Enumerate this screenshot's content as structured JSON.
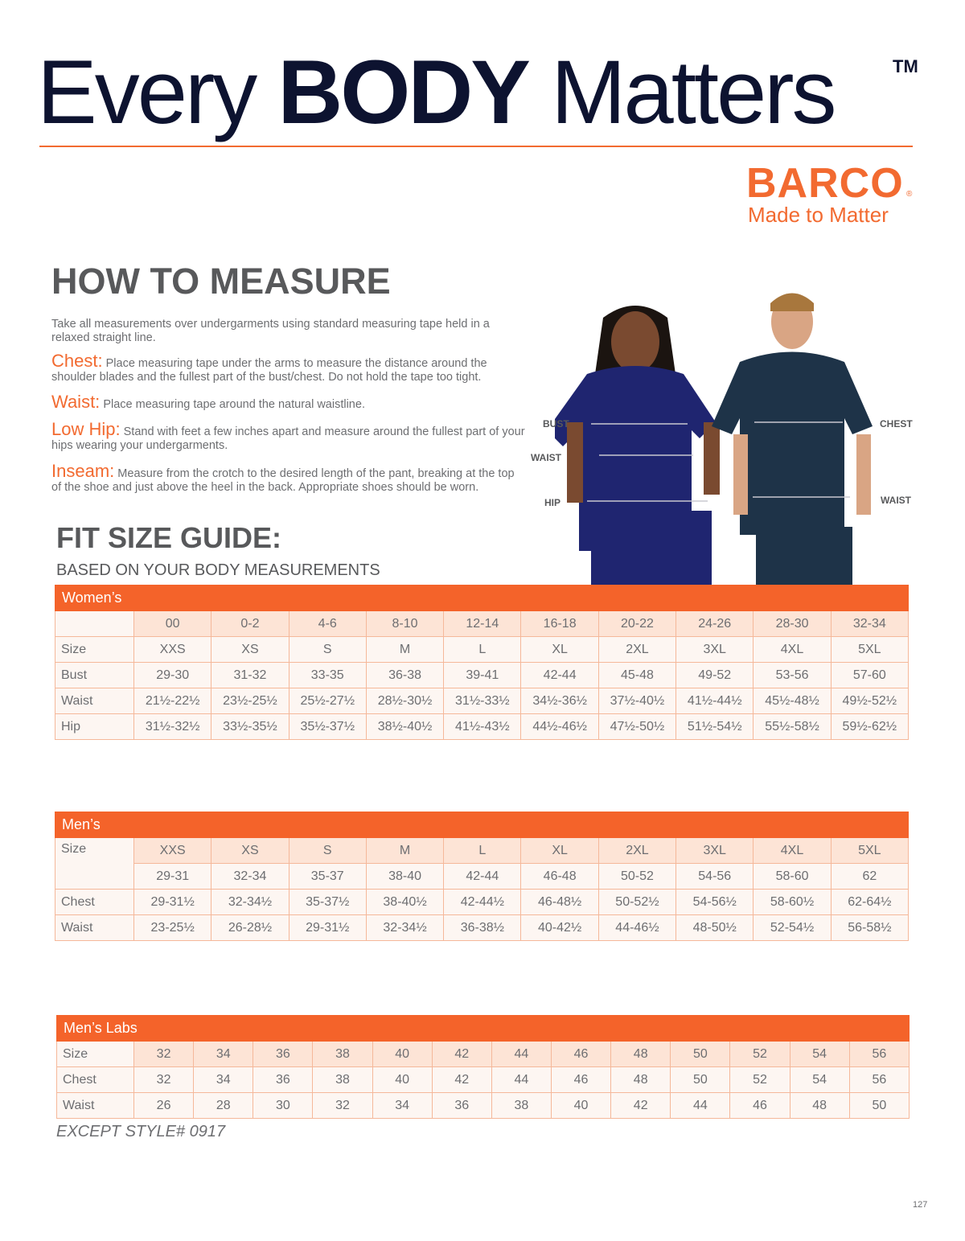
{
  "header": {
    "headline_pre": "Every ",
    "headline_bold": "BODY",
    "headline_post": " Matters",
    "trademark": "TM"
  },
  "brand": {
    "name": "BARCO",
    "registered": "®",
    "tagline": "Made to Matter",
    "color": "#f26a30"
  },
  "how_to_measure": {
    "title": "HOW TO MEASURE",
    "intro": "Take all measurements over undergarments using standard measuring tape held in a relaxed straight line.",
    "items": [
      {
        "term": "Chest:",
        "text": "Place measuring tape under the arms to measure the distance around the shoulder blades and the fullest part of the bust/chest. Do not hold the tape too tight."
      },
      {
        "term": "Waist:",
        "text": "Place measuring tape around the natural waistline."
      },
      {
        "term": "Low Hip:",
        "text": "Stand with feet a few inches apart and measure around the fullest part of your hips wearing your undergarments."
      },
      {
        "term": "Inseam:",
        "text": "Measure from the crotch to the desired length of the pant, breaking at the top of the shoe and just above the heel in the back. Appropriate shoes should be worn."
      }
    ]
  },
  "figure_labels": {
    "bust": "BUST",
    "waist_left": "WAISt",
    "hip": "HIP",
    "chest": "CHEST",
    "waist_right": "WAIST"
  },
  "fit_guide": {
    "title": "FIT SIZE GUIDE:",
    "subtitle": "BASED ON YOUR BODY MEASUREMENTS"
  },
  "womens": {
    "caption": "Women’s",
    "numeric": [
      "00",
      "0-2",
      "4-6",
      "8-10",
      "12-14",
      "16-18",
      "20-22",
      "24-26",
      "28-30",
      "32-34"
    ],
    "rows": [
      {
        "label": "Size",
        "values": [
          "XXS",
          "XS",
          "S",
          "M",
          "L",
          "XL",
          "2XL",
          "3XL",
          "4XL",
          "5XL"
        ]
      },
      {
        "label": "Bust",
        "values": [
          "29-30",
          "31-32",
          "33-35",
          "36-38",
          "39-41",
          "42-44",
          "45-48",
          "49-52",
          "53-56",
          "57-60"
        ]
      },
      {
        "label": "Waist",
        "values": [
          "21½-22½",
          "23½-25½",
          "25½-27½",
          "28½-30½",
          "31½-33½",
          "34½-36½",
          "37½-40½",
          "41½-44½",
          "45½-48½",
          "49½-52½"
        ]
      },
      {
        "label": "Hip",
        "values": [
          "31½-32½",
          "33½-35½",
          "35½-37½",
          "38½-40½",
          "41½-43½",
          "44½-46½",
          "47½-50½",
          "51½-54½",
          "55½-58½",
          "59½-62½"
        ]
      }
    ]
  },
  "mens": {
    "caption": "Men’s",
    "size_label": "Size",
    "sizes": [
      "XXS",
      "XS",
      "S",
      "M",
      "L",
      "XL",
      "2XL",
      "3XL",
      "4XL",
      "5XL"
    ],
    "numeric": [
      "29-31",
      "32-34",
      "35-37",
      "38-40",
      "42-44",
      "46-48",
      "50-52",
      "54-56",
      "58-60",
      "62"
    ],
    "rows": [
      {
        "label": "Chest",
        "values": [
          "29-31½",
          "32-34½",
          "35-37½",
          "38-40½",
          "42-44½",
          "46-48½",
          "50-52½",
          "54-56½",
          "58-60½",
          "62-64½"
        ]
      },
      {
        "label": "Waist",
        "values": [
          "23-25½",
          "26-28½",
          "29-31½",
          "32-34½",
          "36-38½",
          "40-42½",
          "44-46½",
          "48-50½",
          "52-54½",
          "56-58½"
        ]
      }
    ]
  },
  "mens_labs": {
    "caption": "Men’s Labs",
    "rows": [
      {
        "label": "Size",
        "values": [
          "32",
          "34",
          "36",
          "38",
          "40",
          "42",
          "44",
          "46",
          "48",
          "50",
          "52",
          "54",
          "56"
        ]
      },
      {
        "label": "Chest",
        "values": [
          "32",
          "34",
          "36",
          "38",
          "40",
          "42",
          "44",
          "46",
          "48",
          "50",
          "52",
          "54",
          "56"
        ]
      },
      {
        "label": "Waist",
        "values": [
          "26",
          "28",
          "30",
          "32",
          "34",
          "36",
          "38",
          "40",
          "42",
          "44",
          "46",
          "48",
          "50"
        ]
      }
    ],
    "note": "EXCEPT STYLE# 0917"
  },
  "page_number": "127"
}
